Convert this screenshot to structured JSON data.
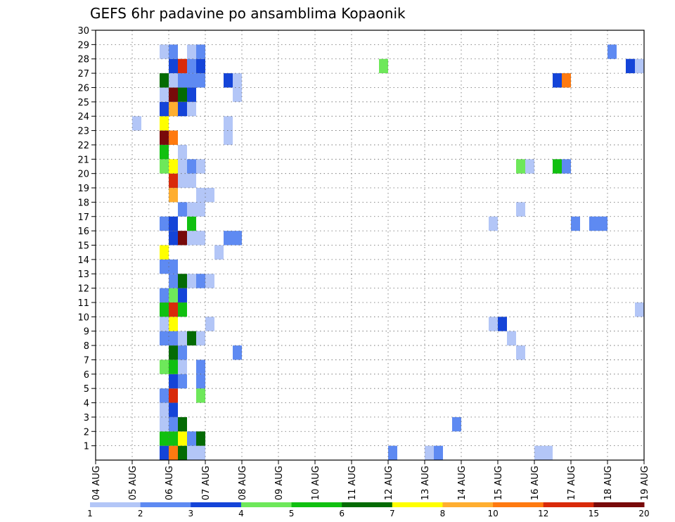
{
  "chart_data": {
    "type": "heatmap",
    "title": "GEFS 6hr padavine po ansamblima Kopaonik",
    "xlabel": "",
    "ylabel": "",
    "x_ticks": [
      "04 AUG",
      "05 AUG",
      "06 AUG",
      "07 AUG",
      "08 AUG",
      "09 AUG",
      "10 AUG",
      "11 AUG",
      "12 AUG",
      "13 AUG",
      "14 AUG",
      "15 AUG",
      "16 AUG",
      "17 AUG",
      "18 AUG",
      "19 AUG"
    ],
    "y_ticks": [
      "1",
      "2",
      "3",
      "4",
      "5",
      "6",
      "7",
      "8",
      "9",
      "10",
      "11",
      "12",
      "13",
      "14",
      "15",
      "16",
      "17",
      "18",
      "19",
      "20",
      "21",
      "22",
      "23",
      "24",
      "25",
      "26",
      "27",
      "28",
      "29",
      "30"
    ],
    "x_range": [
      0,
      60
    ],
    "y_range": [
      0,
      30
    ],
    "grid": true,
    "colorbar": {
      "labels": [
        "1",
        "2",
        "3",
        "4",
        "5",
        "6",
        "7",
        "8",
        "10",
        "12",
        "15",
        "20"
      ],
      "colors": [
        "#b3c6f7",
        "#5e8af2",
        "#1444d8",
        "#6ee85a",
        "#10c010",
        "#046b04",
        "#ffff00",
        "#ffae30",
        "#ff7a10",
        "#d92a0a",
        "#780a0a"
      ]
    },
    "cells": [
      [
        7,
        0,
        3
      ],
      [
        8,
        0,
        9
      ],
      [
        9,
        0,
        6
      ],
      [
        10,
        0,
        1
      ],
      [
        11,
        0,
        1
      ],
      [
        32,
        0,
        2
      ],
      [
        36,
        0,
        1
      ],
      [
        37,
        0,
        2
      ],
      [
        48,
        0,
        1
      ],
      [
        49,
        0,
        1
      ],
      [
        7,
        1,
        5
      ],
      [
        8,
        1,
        5
      ],
      [
        9,
        1,
        7
      ],
      [
        10,
        1,
        2
      ],
      [
        11,
        1,
        6
      ],
      [
        7,
        2,
        1
      ],
      [
        8,
        2,
        2
      ],
      [
        9,
        2,
        6
      ],
      [
        39,
        2,
        2
      ],
      [
        7,
        3,
        1
      ],
      [
        8,
        3,
        3
      ],
      [
        7,
        4,
        2
      ],
      [
        8,
        4,
        10
      ],
      [
        11,
        4,
        4
      ],
      [
        8,
        5,
        3
      ],
      [
        9,
        5,
        2
      ],
      [
        11,
        5,
        2
      ],
      [
        7,
        6,
        4
      ],
      [
        8,
        6,
        5
      ],
      [
        9,
        6,
        1
      ],
      [
        11,
        6,
        2
      ],
      [
        8,
        7,
        6
      ],
      [
        9,
        7,
        2
      ],
      [
        15,
        7,
        2
      ],
      [
        46,
        7,
        1
      ],
      [
        7,
        8,
        2
      ],
      [
        8,
        8,
        2
      ],
      [
        9,
        8,
        1
      ],
      [
        10,
        8,
        6
      ],
      [
        11,
        8,
        1
      ],
      [
        45,
        8,
        1
      ],
      [
        7,
        9,
        1
      ],
      [
        8,
        9,
        7
      ],
      [
        12,
        9,
        1
      ],
      [
        43,
        9,
        1
      ],
      [
        44,
        9,
        3
      ],
      [
        7,
        10,
        5
      ],
      [
        8,
        10,
        10
      ],
      [
        9,
        10,
        5
      ],
      [
        59,
        10,
        1
      ],
      [
        7,
        11,
        2
      ],
      [
        8,
        11,
        4
      ],
      [
        9,
        11,
        3
      ],
      [
        8,
        12,
        2
      ],
      [
        9,
        12,
        6
      ],
      [
        10,
        12,
        1
      ],
      [
        11,
        12,
        2
      ],
      [
        12,
        12,
        1
      ],
      [
        7,
        13,
        2
      ],
      [
        8,
        13,
        2
      ],
      [
        7,
        14,
        7
      ],
      [
        13,
        14,
        1
      ],
      [
        8,
        15,
        3
      ],
      [
        9,
        15,
        11
      ],
      [
        10,
        15,
        1
      ],
      [
        11,
        15,
        1
      ],
      [
        14,
        15,
        2
      ],
      [
        15,
        15,
        2
      ],
      [
        7,
        16,
        2
      ],
      [
        8,
        16,
        3
      ],
      [
        10,
        16,
        5
      ],
      [
        43,
        16,
        1
      ],
      [
        52,
        16,
        2
      ],
      [
        54,
        16,
        2
      ],
      [
        55,
        16,
        2
      ],
      [
        9,
        17,
        2
      ],
      [
        10,
        17,
        1
      ],
      [
        11,
        17,
        1
      ],
      [
        46,
        17,
        1
      ],
      [
        8,
        18,
        8
      ],
      [
        11,
        18,
        1
      ],
      [
        12,
        18,
        1
      ],
      [
        8,
        19,
        10
      ],
      [
        9,
        19,
        1
      ],
      [
        10,
        19,
        1
      ],
      [
        7,
        20,
        4
      ],
      [
        8,
        20,
        7
      ],
      [
        9,
        20,
        1
      ],
      [
        10,
        20,
        2
      ],
      [
        11,
        20,
        1
      ],
      [
        46,
        20,
        4
      ],
      [
        47,
        20,
        1
      ],
      [
        50,
        20,
        5
      ],
      [
        51,
        20,
        2
      ],
      [
        7,
        21,
        5
      ],
      [
        9,
        21,
        1
      ],
      [
        7,
        22,
        11
      ],
      [
        8,
        22,
        9
      ],
      [
        14,
        22,
        1
      ],
      [
        4,
        23,
        1
      ],
      [
        7,
        23,
        7
      ],
      [
        14,
        23,
        1
      ],
      [
        7,
        24,
        3
      ],
      [
        8,
        24,
        8
      ],
      [
        9,
        24,
        3
      ],
      [
        10,
        24,
        1
      ],
      [
        7,
        25,
        1
      ],
      [
        8,
        25,
        11
      ],
      [
        9,
        25,
        6
      ],
      [
        10,
        25,
        3
      ],
      [
        15,
        25,
        1
      ],
      [
        7,
        26,
        6
      ],
      [
        8,
        26,
        1
      ],
      [
        9,
        26,
        2
      ],
      [
        10,
        26,
        2
      ],
      [
        11,
        26,
        2
      ],
      [
        14,
        26,
        3
      ],
      [
        15,
        26,
        1
      ],
      [
        50,
        26,
        3
      ],
      [
        51,
        26,
        9
      ],
      [
        8,
        27,
        3
      ],
      [
        9,
        27,
        10
      ],
      [
        10,
        27,
        2
      ],
      [
        11,
        27,
        3
      ],
      [
        31,
        27,
        4
      ],
      [
        58,
        27,
        3
      ],
      [
        59,
        27,
        1
      ],
      [
        7,
        28,
        1
      ],
      [
        8,
        28,
        2
      ],
      [
        10,
        28,
        1
      ],
      [
        11,
        28,
        2
      ],
      [
        56,
        28,
        2
      ]
    ]
  }
}
